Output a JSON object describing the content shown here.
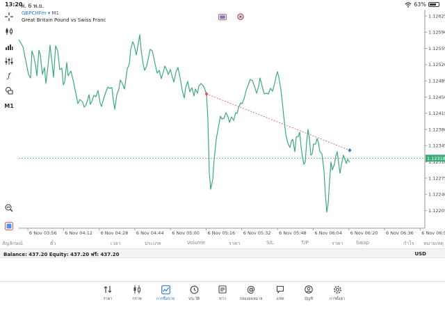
{
  "status_bar": {
    "time": "13:20",
    "date": "พ. 6 พ.ย.",
    "battery": "63%"
  },
  "chart": {
    "symbol": "GBPCHFm",
    "dropdown_arrow": "▾",
    "timeframe": "M1",
    "description": "Great Britain Pound vs Swiss Franc",
    "current_price": "1.12318",
    "price_ticks": [
      "1.12625",
      "1.12590",
      "1.12555",
      "1.12520",
      "1.12485",
      "1.12450",
      "1.12415",
      "1.12380",
      "1.12345",
      "1.12310",
      "1.12275",
      "1.12240",
      "1.12205"
    ],
    "time_ticks": [
      "6 Nov 03:56",
      "6 Nov 04:12",
      "6 Nov 04:28",
      "6 Nov 04:44",
      "6 Nov 05:00",
      "6 Nov 05:16",
      "6 Nov 05:32",
      "6 Nov 05:48",
      "6 Nov 06:04",
      "6 Nov 06:20",
      "6 Nov 06:36",
      "6 Nov 06:5"
    ],
    "line_color": "#3aaa7a",
    "current_line_color": "#3aaa7a",
    "trendline_color": "#e06060"
  },
  "left_tools": {
    "m1_label": "M1"
  },
  "columns": {
    "symbol": "สัญลักษณ์",
    "ticket": "ตั๋ว",
    "time": "เวลา",
    "type": "ประเภท",
    "volume": "Volume",
    "price": "ราคา",
    "sl": "S/L",
    "tp": "T/P",
    "price2": "ราคา",
    "swap": "Swap",
    "profit": "กำไร",
    "comment": "หมายเหตุ"
  },
  "account": {
    "summary": "Balance: 437.20 Equity: 437.20 ฟรี: 437.20",
    "currency": "USD"
  },
  "nav": [
    {
      "label": "ราคา",
      "icon": "quotes-icon"
    },
    {
      "label": "กราฟ",
      "icon": "chart-icon"
    },
    {
      "label": "การซื้อขาย",
      "icon": "trade-icon"
    },
    {
      "label": "ประวัติ",
      "icon": "history-icon"
    },
    {
      "label": "ข่าว",
      "icon": "news-icon"
    },
    {
      "label": "กล่องจดหมาย",
      "icon": "mailbox-icon"
    },
    {
      "label": "แชท",
      "icon": "chat-icon"
    },
    {
      "label": "บัญชี",
      "icon": "account-icon"
    },
    {
      "label": "การตั้งค่า",
      "icon": "settings-icon"
    }
  ],
  "active_nav": "trade-icon",
  "accent_color": "#2a7bd6"
}
